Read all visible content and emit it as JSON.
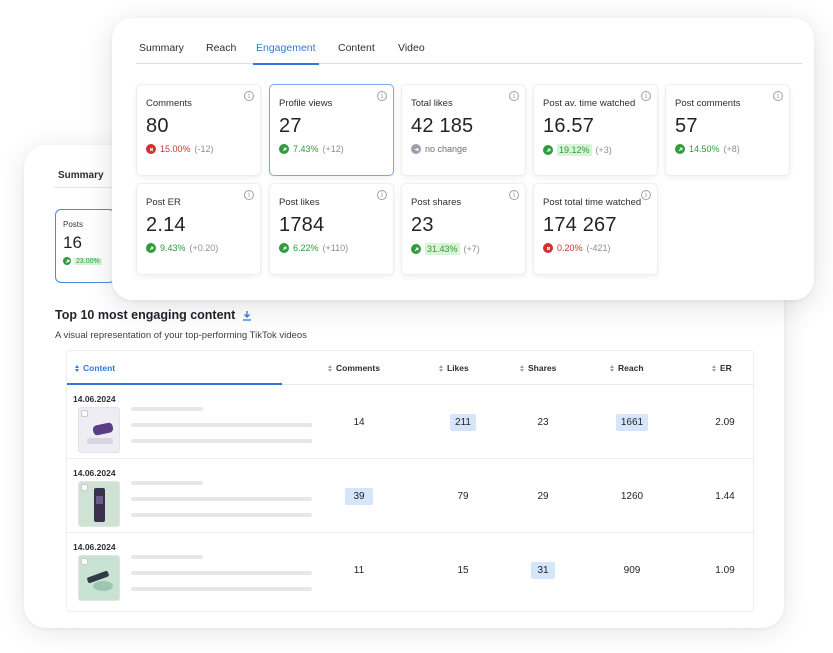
{
  "colors": {
    "accent": "#2f78e0",
    "up": "#2e9b3c",
    "down": "#d32f2f",
    "highlight": "#d5e5fa"
  },
  "back": {
    "tab": "Summary",
    "posts_card": {
      "label": "Posts",
      "value": "16",
      "change": "23.00%"
    },
    "section_title": "Top 10 most engaging content",
    "section_subtitle": "A visual representation of your top-performing TikTok videos",
    "columns": [
      "Content",
      "Comments",
      "Likes",
      "Shares",
      "Reach",
      "ER"
    ],
    "rows": [
      {
        "date": "14.06.2024",
        "comments": "14",
        "likes": "211",
        "shares": "23",
        "reach": "1661",
        "er": "2.09"
      },
      {
        "date": "14.06.2024",
        "comments": "39",
        "likes": "79",
        "shares": "29",
        "reach": "1260",
        "er": "1.44"
      },
      {
        "date": "14.06.2024",
        "comments": "11",
        "likes": "15",
        "shares": "31",
        "reach": "909",
        "er": "1.09"
      }
    ]
  },
  "front": {
    "tabs": [
      "Summary",
      "Reach",
      "Engagement",
      "Content",
      "Video"
    ],
    "active_tab": "Engagement",
    "metrics": [
      {
        "label": "Comments",
        "value": "80",
        "trend": "down",
        "pct": "15.00%",
        "abs": "(-12)"
      },
      {
        "label": "Profile views",
        "value": "27",
        "trend": "up",
        "pct": "7.43%",
        "abs": "(+12)"
      },
      {
        "label": "Total likes",
        "value": "42 185",
        "trend": "none",
        "pct": "no change",
        "abs": ""
      },
      {
        "label": "Post av. time watched",
        "value": "16.57",
        "trend": "up",
        "pct": "19.12%",
        "abs": "(+3)"
      },
      {
        "label": "Post comments",
        "value": "57",
        "trend": "up",
        "pct": "14.50%",
        "abs": "(+8)"
      },
      {
        "label": "Post ER",
        "value": "2.14",
        "trend": "up",
        "pct": "9.43%",
        "abs": "(+0.20)"
      },
      {
        "label": "Post likes",
        "value": "1784",
        "trend": "up",
        "pct": "6.22%",
        "abs": "(+110)"
      },
      {
        "label": "Post shares",
        "value": "23",
        "trend": "up",
        "pct": "31.43%",
        "abs": "(+7)"
      },
      {
        "label": "Post total time watched",
        "value": "174 267",
        "trend": "down",
        "pct": "0.20%",
        "abs": "(-421)"
      }
    ]
  }
}
